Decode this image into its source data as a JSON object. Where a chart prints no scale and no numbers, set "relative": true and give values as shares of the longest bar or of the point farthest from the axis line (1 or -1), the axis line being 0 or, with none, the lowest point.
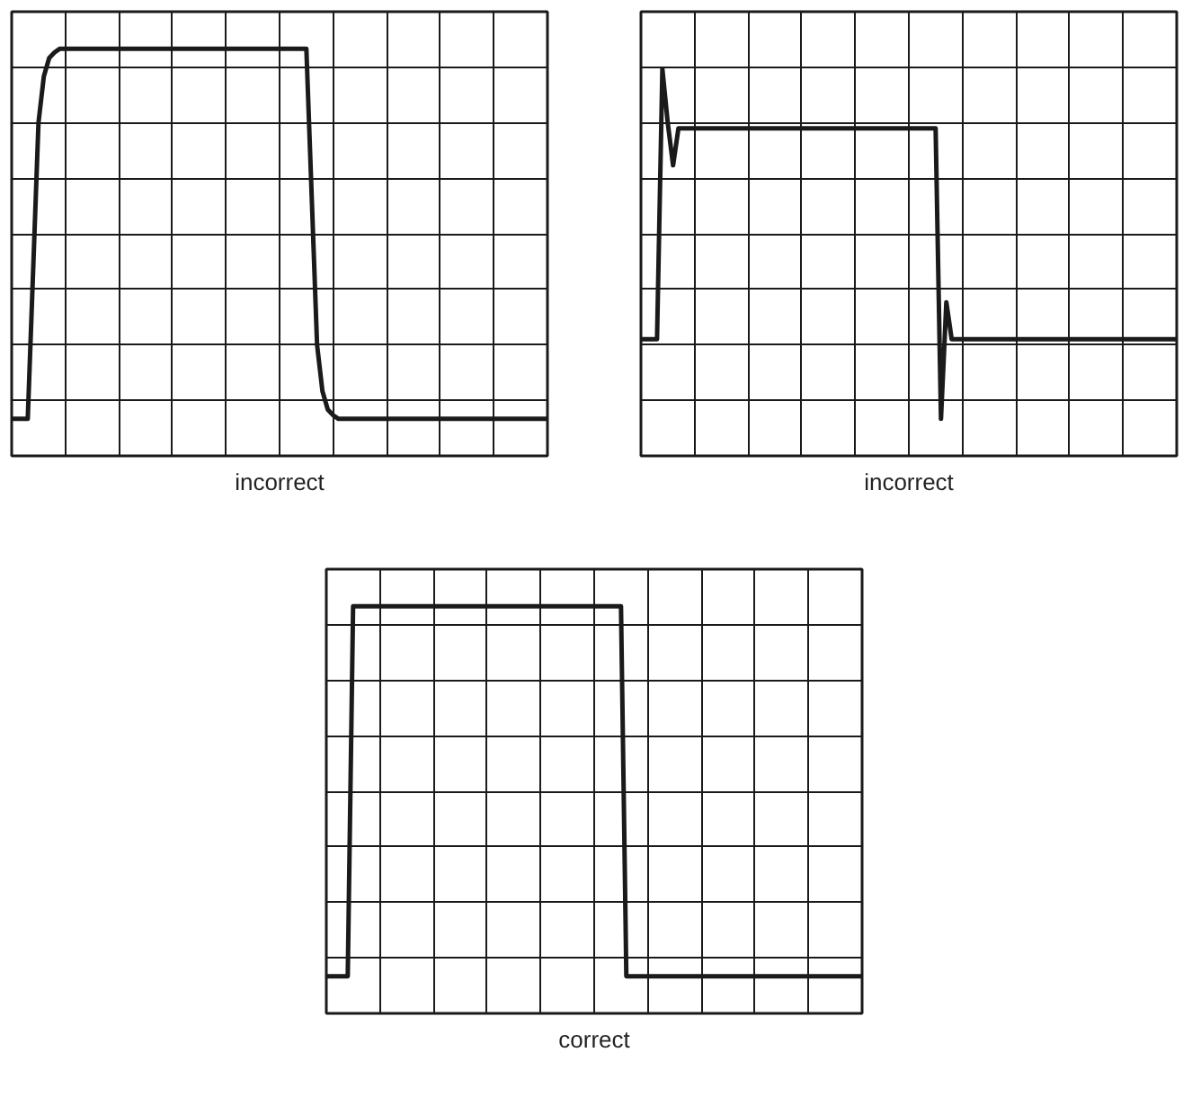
{
  "chart_data": [
    {
      "type": "line",
      "title": "incorrect",
      "relative": true,
      "grid": true,
      "tick_labels": false,
      "categories": [
        null,
        null,
        null,
        null,
        null,
        null,
        null,
        null,
        null,
        null,
        null,
        null,
        null,
        null,
        null,
        null,
        null,
        null,
        null,
        null,
        null,
        null,
        null,
        null,
        null,
        null,
        null,
        null,
        null,
        null,
        null,
        null,
        null,
        null,
        null,
        null,
        null,
        null,
        null,
        null,
        null,
        null,
        null,
        null,
        null,
        null,
        null,
        null,
        null,
        null,
        null,
        null,
        null,
        null,
        null,
        null,
        null,
        null,
        null,
        null,
        null,
        null,
        null,
        null,
        null,
        null,
        null,
        null,
        null,
        null,
        null,
        null,
        null,
        null,
        null,
        null,
        null,
        null,
        null,
        null,
        null,
        null,
        null,
        null,
        null,
        null,
        null,
        null,
        null,
        null,
        null,
        null,
        null,
        null,
        null,
        null,
        null,
        null,
        null,
        null,
        null
      ],
      "series": [
        {
          "color": "#1a1a1a",
          "values": [
            -1,
            -1,
            -1,
            -1,
            -0.2,
            0.6,
            0.85,
            0.95,
            0.98,
            1,
            1,
            1,
            1,
            1,
            1,
            1,
            1,
            1,
            1,
            1,
            1,
            1,
            1,
            1,
            1,
            1,
            1,
            1,
            1,
            1,
            1,
            1,
            1,
            1,
            1,
            1,
            1,
            1,
            1,
            1,
            1,
            1,
            1,
            1,
            1,
            1,
            1,
            1,
            1,
            1,
            1,
            1,
            1,
            1,
            1,
            1,
            0.2,
            -0.6,
            -0.85,
            -0.95,
            -0.98,
            -1,
            -1,
            -1,
            -1,
            -1,
            -1,
            -1,
            -1,
            -1,
            -1,
            -1,
            -1,
            -1,
            -1,
            -1,
            -1,
            -1,
            -1,
            -1,
            -1,
            -1,
            -1,
            -1,
            -1,
            -1,
            -1,
            -1,
            -1,
            -1,
            -1,
            -1,
            -1,
            -1,
            -1,
            -1,
            -1,
            -1,
            -1,
            -1,
            -1
          ]
        }
      ]
    },
    {
      "type": "line",
      "title": "incorrect",
      "relative": true,
      "grid": true,
      "tick_labels": false,
      "categories": [
        null,
        null,
        null,
        null,
        null,
        null,
        null,
        null,
        null,
        null,
        null,
        null,
        null,
        null,
        null,
        null,
        null,
        null,
        null,
        null,
        null,
        null,
        null,
        null,
        null,
        null,
        null,
        null,
        null,
        null,
        null,
        null,
        null,
        null,
        null,
        null,
        null,
        null,
        null,
        null,
        null,
        null,
        null,
        null,
        null,
        null,
        null,
        null,
        null,
        null,
        null,
        null,
        null,
        null,
        null,
        null,
        null,
        null,
        null,
        null,
        null,
        null,
        null,
        null,
        null,
        null,
        null,
        null,
        null,
        null,
        null,
        null,
        null,
        null,
        null,
        null,
        null,
        null,
        null,
        null,
        null,
        null,
        null,
        null,
        null,
        null,
        null,
        null,
        null,
        null,
        null,
        null,
        null,
        null,
        null,
        null,
        null,
        null,
        null,
        null,
        null
      ],
      "series": [
        {
          "color": "#1a1a1a",
          "values": [
            -0.57,
            -0.57,
            -0.57,
            -0.57,
            0.89,
            0.6,
            0.37,
            0.57,
            0.57,
            0.57,
            0.57,
            0.57,
            0.57,
            0.57,
            0.57,
            0.57,
            0.57,
            0.57,
            0.57,
            0.57,
            0.57,
            0.57,
            0.57,
            0.57,
            0.57,
            0.57,
            0.57,
            0.57,
            0.57,
            0.57,
            0.57,
            0.57,
            0.57,
            0.57,
            0.57,
            0.57,
            0.57,
            0.57,
            0.57,
            0.57,
            0.57,
            0.57,
            0.57,
            0.57,
            0.57,
            0.57,
            0.57,
            0.57,
            0.57,
            0.57,
            0.57,
            0.57,
            0.57,
            0.57,
            0.57,
            0.57,
            -1,
            -0.37,
            -0.57,
            -0.57,
            -0.57,
            -0.57,
            -0.57,
            -0.57,
            -0.57,
            -0.57,
            -0.57,
            -0.57,
            -0.57,
            -0.57,
            -0.57,
            -0.57,
            -0.57,
            -0.57,
            -0.57,
            -0.57,
            -0.57,
            -0.57,
            -0.57,
            -0.57,
            -0.57,
            -0.57,
            -0.57,
            -0.57,
            -0.57,
            -0.57,
            -0.57,
            -0.57,
            -0.57,
            -0.57,
            -0.57,
            -0.57,
            -0.57,
            -0.57,
            -0.57,
            -0.57,
            -0.57,
            -0.57,
            -0.57,
            -0.57,
            -0.57
          ]
        }
      ]
    },
    {
      "type": "line",
      "title": "correct",
      "relative": true,
      "grid": true,
      "tick_labels": false,
      "categories": [
        null,
        null,
        null,
        null,
        null,
        null,
        null,
        null,
        null,
        null,
        null,
        null,
        null,
        null,
        null,
        null,
        null,
        null,
        null,
        null,
        null,
        null,
        null,
        null,
        null,
        null,
        null,
        null,
        null,
        null,
        null,
        null,
        null,
        null,
        null,
        null,
        null,
        null,
        null,
        null,
        null,
        null,
        null,
        null,
        null,
        null,
        null,
        null,
        null,
        null,
        null,
        null,
        null,
        null,
        null,
        null,
        null,
        null,
        null,
        null,
        null,
        null,
        null,
        null,
        null,
        null,
        null,
        null,
        null,
        null,
        null,
        null,
        null,
        null,
        null,
        null,
        null,
        null,
        null,
        null,
        null,
        null,
        null,
        null,
        null,
        null,
        null,
        null,
        null,
        null,
        null,
        null,
        null,
        null,
        null,
        null,
        null,
        null,
        null,
        null,
        null
      ],
      "series": [
        {
          "color": "#1a1a1a",
          "values": [
            -1,
            -1,
            -1,
            -1,
            -1,
            1,
            1,
            1,
            1,
            1,
            1,
            1,
            1,
            1,
            1,
            1,
            1,
            1,
            1,
            1,
            1,
            1,
            1,
            1,
            1,
            1,
            1,
            1,
            1,
            1,
            1,
            1,
            1,
            1,
            1,
            1,
            1,
            1,
            1,
            1,
            1,
            1,
            1,
            1,
            1,
            1,
            1,
            1,
            1,
            1,
            1,
            1,
            1,
            1,
            1,
            1,
            -1,
            -1,
            -1,
            -1,
            -1,
            -1,
            -1,
            -1,
            -1,
            -1,
            -1,
            -1,
            -1,
            -1,
            -1,
            -1,
            -1,
            -1,
            -1,
            -1,
            -1,
            -1,
            -1,
            -1,
            -1,
            -1,
            -1,
            -1,
            -1,
            -1,
            -1,
            -1,
            -1,
            -1,
            -1,
            -1,
            -1,
            -1,
            -1,
            -1,
            -1,
            -1,
            -1,
            -1,
            -1
          ]
        }
      ]
    }
  ]
}
